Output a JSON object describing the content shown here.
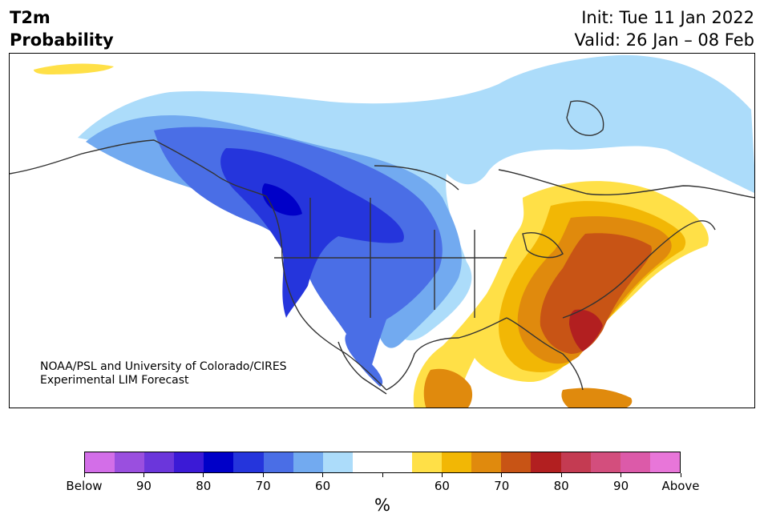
{
  "header": {
    "title_line1": "T2m",
    "title_line2": "Probability",
    "init_line": "Init: Tue 11 Jan 2022",
    "valid_line": "Valid: 26 Jan – 08 Feb"
  },
  "credit": {
    "line1": "NOAA/PSL and University of Colorado/CIRES",
    "line2": "Experimental LIM Forecast"
  },
  "colorbar": {
    "unit": "%",
    "swatches": [
      "#d36ee8",
      "#9a4fdf",
      "#6b36db",
      "#3b1ad6",
      "#0000c8",
      "#2535dc",
      "#4a6ee6",
      "#72aaf0",
      "#acdcfa",
      "#ffffff",
      "#ffffff",
      "#ffe047",
      "#f2b705",
      "#e08a0d",
      "#c85415",
      "#b21f20",
      "#c43b52",
      "#d34e7d",
      "#dc5aa9",
      "#e876d9"
    ],
    "tick_labels": [
      "Below",
      "90",
      "80",
      "70",
      "60",
      "",
      "60",
      "70",
      "80",
      "90",
      "Above"
    ]
  },
  "map_colors": {
    "below_60": "#acdcfa",
    "below_70": "#72aaf0",
    "below_80": "#4a6ee6",
    "below_90": "#2535dc",
    "below_95": "#0000c8",
    "above_60": "#ffe047",
    "above_70": "#f2b705",
    "above_80": "#e08a0d",
    "above_90": "#c85415",
    "above_95": "#b21f20",
    "coast": "#333333"
  }
}
